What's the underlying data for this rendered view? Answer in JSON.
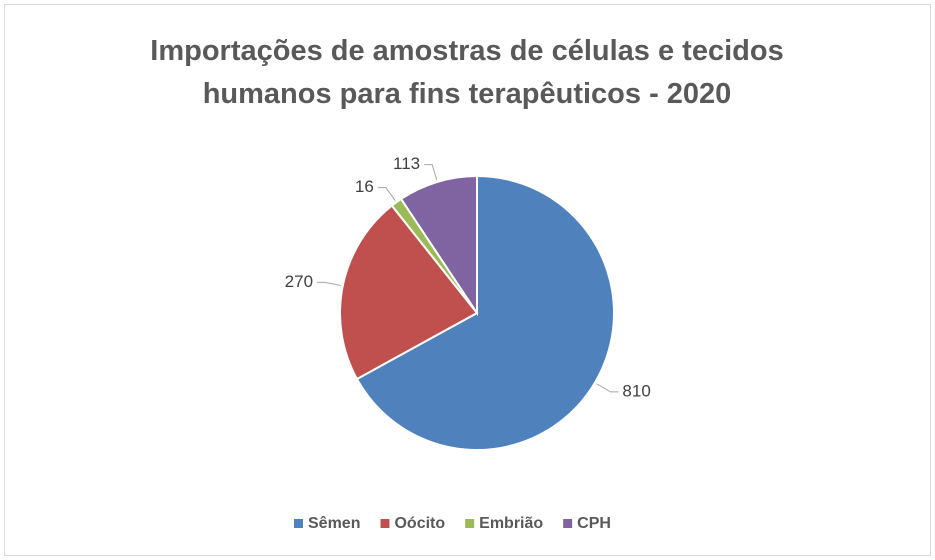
{
  "chart_data": {
    "type": "pie",
    "title": "Importações de amostras de células e tecidos humanos para fins terapêuticos - 2020",
    "categories": [
      "Sêmen",
      "Oócito",
      "Embrião",
      "CPH"
    ],
    "values": [
      810,
      270,
      16,
      113
    ],
    "colors": [
      "#4f81bd",
      "#c0504d",
      "#9bbb59",
      "#8064a2"
    ],
    "legend": "bottom"
  }
}
